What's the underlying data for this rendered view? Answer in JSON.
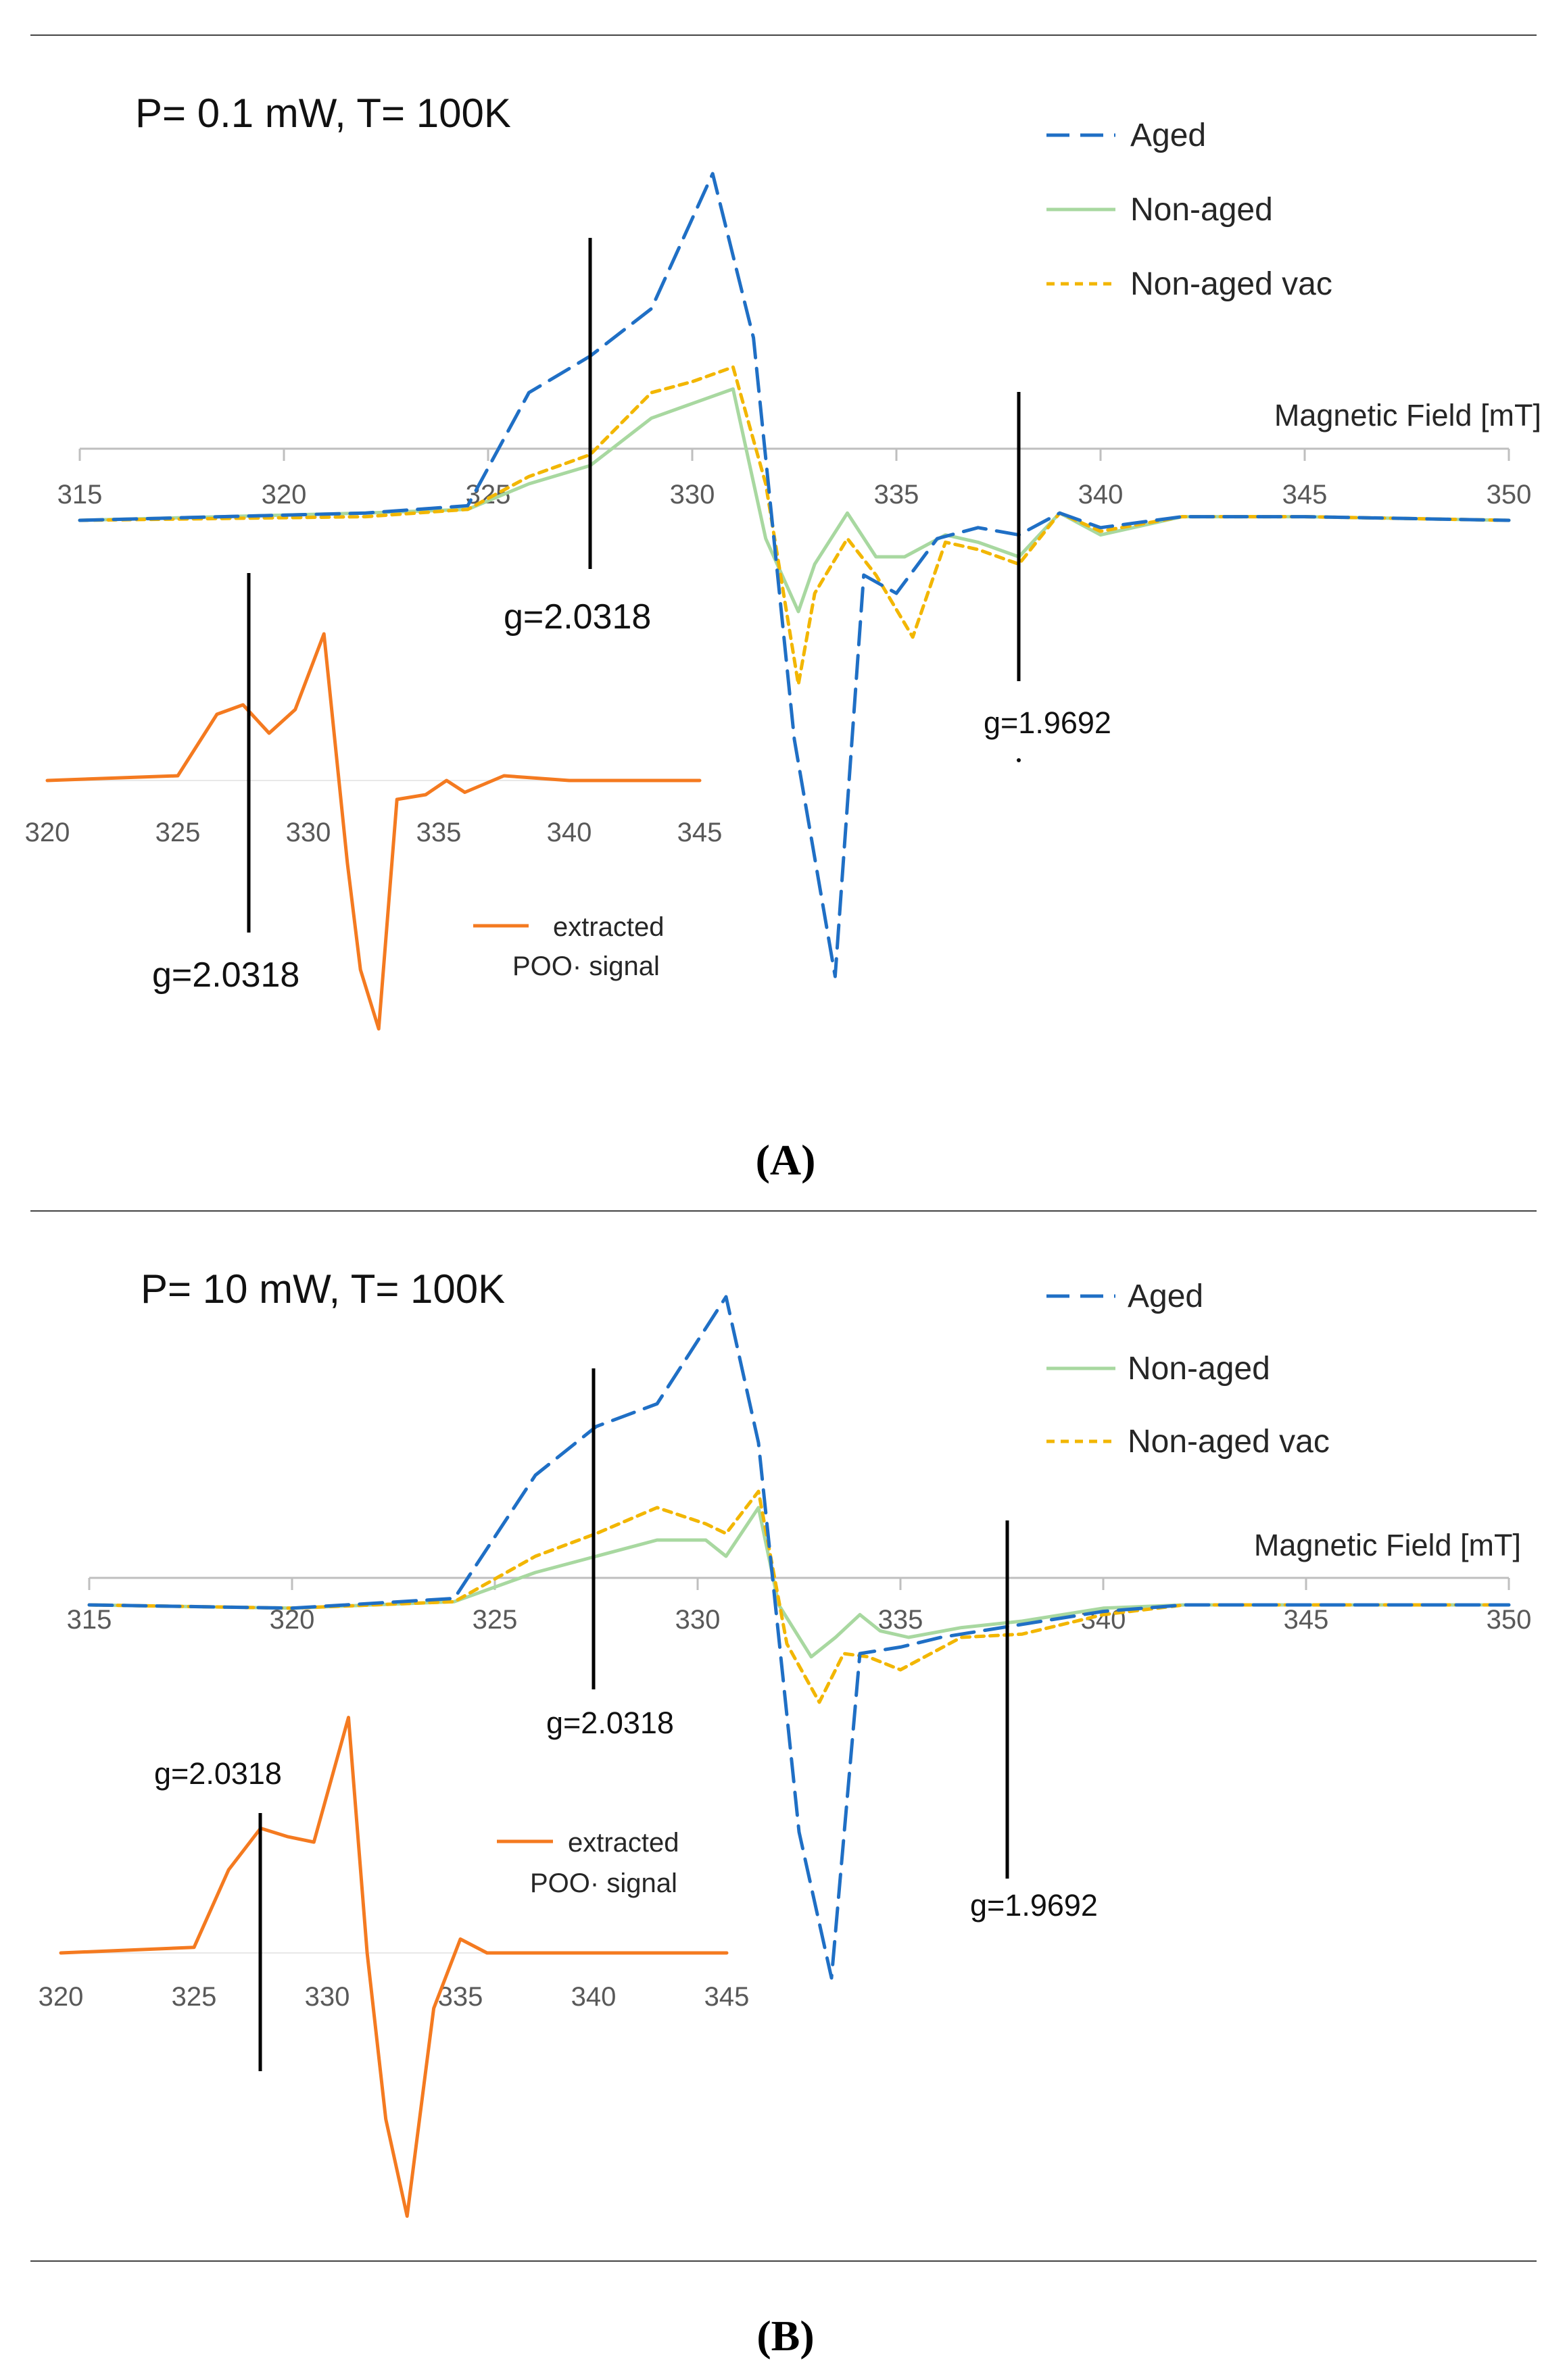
{
  "caption_a": "(A)",
  "caption_b": "(B)",
  "chart_data": [
    {
      "panel": "A",
      "type": "line",
      "title": "P= 0.1 mW, T= 100K",
      "xlabel": "Magnetic Field [mT]",
      "ylabel": "",
      "xlim": [
        315,
        350
      ],
      "ticks": [
        "315",
        "320",
        "325",
        "330",
        "335",
        "340",
        "345",
        "350"
      ],
      "legend": [
        "Aged",
        "Non-aged",
        "Non-aged vac"
      ],
      "colors": {
        "aged": "#1f6fc5",
        "nonaged": "#a8d8a0",
        "vac": "#f2b600",
        "extracted": "#f47a20"
      },
      "series": [
        {
          "name": "Aged",
          "style": "long-dash",
          "x": [
            315,
            322,
            324.5,
            326,
            327.5,
            329,
            330.5,
            331.5,
            332.5,
            333.5,
            334.2,
            335,
            336,
            337,
            338,
            339,
            340,
            342,
            345,
            350
          ],
          "y": [
            0,
            0.02,
            0.04,
            0.35,
            0.45,
            0.58,
            0.95,
            0.5,
            -0.6,
            -1.25,
            -0.15,
            -0.2,
            -0.05,
            -0.02,
            -0.04,
            0.02,
            -0.02,
            0.01,
            0.01,
            0
          ]
        },
        {
          "name": "Non-aged",
          "style": "solid",
          "x": [
            315,
            322,
            324.5,
            326,
            327.5,
            329,
            330,
            331,
            331.8,
            332.6,
            333,
            333.8,
            334.5,
            335.2,
            336.2,
            337,
            338,
            339,
            340,
            342,
            345,
            350
          ],
          "y": [
            0,
            0.02,
            0.03,
            0.1,
            0.15,
            0.28,
            0.32,
            0.36,
            -0.05,
            -0.25,
            -0.12,
            0.02,
            -0.1,
            -0.1,
            -0.04,
            -0.06,
            -0.1,
            0.02,
            -0.04,
            0.01,
            0.01,
            0
          ]
        },
        {
          "name": "Non-aged vac",
          "style": "short-dash",
          "x": [
            315,
            322,
            324.5,
            326,
            327.5,
            329,
            330,
            331,
            331.8,
            332.6,
            333,
            333.8,
            334.5,
            335.4,
            336.2,
            337,
            338,
            339,
            340,
            342,
            345,
            350
          ],
          "y": [
            0,
            0.01,
            0.03,
            0.12,
            0.18,
            0.35,
            0.38,
            0.42,
            0.1,
            -0.45,
            -0.2,
            -0.05,
            -0.15,
            -0.32,
            -0.06,
            -0.08,
            -0.12,
            0.02,
            -0.03,
            0.01,
            0.01,
            0
          ]
        }
      ],
      "annotations": [
        {
          "label": "g=2.0318",
          "x": 327.5
        },
        {
          "label": "g=1.9692",
          "x": 338
        }
      ],
      "inset": {
        "xlim": [
          320,
          345
        ],
        "ticks": [
          "320",
          "325",
          "330",
          "335",
          "340",
          "345"
        ],
        "legend": [
          "extracted",
          "POO· signal"
        ],
        "series": {
          "name": "extracted POO· signal",
          "x": [
            320,
            325,
            326.5,
            327.5,
            328.5,
            329.5,
            330.6,
            331.5,
            332,
            332.7,
            333.4,
            334.5,
            335.3,
            336,
            337.5,
            340,
            345
          ],
          "y": [
            0,
            0.02,
            0.28,
            0.32,
            0.2,
            0.3,
            0.62,
            -0.35,
            -0.8,
            -1.05,
            -0.08,
            -0.06,
            0,
            -0.05,
            0.02,
            0,
            0
          ]
        },
        "annotation": {
          "label": "g=2.0318",
          "x": 327.5
        }
      }
    },
    {
      "panel": "B",
      "type": "line",
      "title": "P= 10 mW, T= 100K",
      "xlabel": "Magnetic Field [mT]",
      "ylabel": "",
      "xlim": [
        315,
        350
      ],
      "ticks": [
        "315",
        "320",
        "325",
        "330",
        "335",
        "340",
        "345",
        "350"
      ],
      "legend": [
        "Aged",
        "Non-aged",
        "Non-aged vac"
      ],
      "colors": {
        "aged": "#1f6fc5",
        "nonaged": "#a8d8a0",
        "vac": "#f2b600",
        "extracted": "#f47a20"
      },
      "series": [
        {
          "name": "Aged",
          "style": "long-dash",
          "x": [
            315,
            320,
            324,
            326,
            327.5,
            329,
            330.7,
            331.5,
            332.5,
            333.3,
            334,
            335,
            336,
            337,
            338,
            340,
            342,
            345,
            350
          ],
          "y": [
            0,
            -0.01,
            0.02,
            0.4,
            0.55,
            0.62,
            0.95,
            0.5,
            -0.7,
            -1.15,
            -0.15,
            -0.13,
            -0.1,
            -0.08,
            -0.06,
            -0.02,
            0,
            0,
            0
          ]
        },
        {
          "name": "Non-aged",
          "style": "solid",
          "x": [
            315,
            320,
            324,
            326,
            327.5,
            329,
            330.2,
            330.7,
            331.5,
            332,
            332.8,
            333.4,
            334,
            334.5,
            335.2,
            336.5,
            338,
            340,
            342,
            345,
            350
          ],
          "y": [
            0,
            -0.01,
            0.01,
            0.1,
            0.15,
            0.2,
            0.2,
            0.15,
            0.3,
            0,
            -0.16,
            -0.1,
            -0.03,
            -0.08,
            -0.1,
            -0.07,
            -0.05,
            -0.01,
            0,
            0,
            0
          ]
        },
        {
          "name": "Non-aged vac",
          "style": "short-dash",
          "x": [
            315,
            320,
            324,
            326,
            327.5,
            329,
            330.2,
            330.7,
            331.5,
            332.2,
            333,
            333.6,
            334.2,
            335,
            336.5,
            338,
            340,
            342,
            345,
            350
          ],
          "y": [
            0,
            -0.01,
            0.01,
            0.15,
            0.22,
            0.3,
            0.25,
            0.22,
            0.35,
            -0.12,
            -0.3,
            -0.15,
            -0.16,
            -0.2,
            -0.1,
            -0.09,
            -0.03,
            0,
            0,
            0
          ]
        }
      ],
      "annotations": [
        {
          "label": "g=2.0318",
          "x": 327.5
        },
        {
          "label": "g=1.9692",
          "x": 338
        }
      ],
      "inset": {
        "xlim": [
          320,
          345
        ],
        "ticks": [
          "320",
          "325",
          "330",
          "335",
          "340",
          "345"
        ],
        "legend": [
          "extracted",
          "POO· signal"
        ],
        "series": {
          "name": "extracted POO· signal",
          "x": [
            320,
            325,
            326.3,
            327.5,
            328.5,
            329.5,
            330.8,
            331.5,
            332.2,
            333,
            334,
            335,
            336,
            338,
            340,
            345
          ],
          "y": [
            0,
            0.02,
            0.3,
            0.45,
            0.42,
            0.4,
            0.85,
            0,
            -0.6,
            -0.95,
            -0.2,
            0.05,
            0,
            0,
            0,
            0
          ]
        },
        "annotation": {
          "label": "g=2.0318",
          "x": 327.5
        }
      }
    }
  ]
}
